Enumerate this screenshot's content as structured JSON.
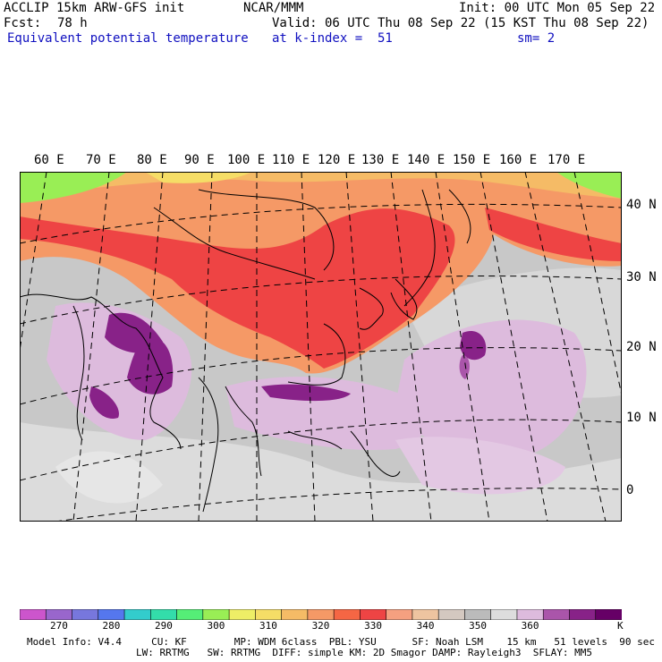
{
  "header": {
    "model": "ACCLIP 15km ARW-GFS init",
    "org": "NCAR/MMM",
    "init": "Init: 00 UTC Mon 05 Sep 22",
    "fcst_label": "Fcst:",
    "fcst_value": "78 h",
    "valid": "Valid: 06 UTC Thu 08 Sep 22 (15 KST Thu 08 Sep 22)",
    "field": "Equivalent potential temperature",
    "level": "at k-index =  51",
    "smooth": "sm= 2"
  },
  "map": {
    "lon_labels": [
      "60 E",
      "70 E",
      "80 E",
      "90 E",
      "100 E",
      "110 E",
      "120 E",
      "130 E",
      "140 E",
      "150 E",
      "160 E",
      "170 E"
    ],
    "lat_labels": [
      "40 N",
      "30 N",
      "20 N",
      "10 N",
      "0"
    ]
  },
  "colorbar": {
    "colors": [
      "#cc55cc",
      "#9966cc",
      "#7777dd",
      "#5577ee",
      "#33cccc",
      "#33ddaa",
      "#55ee77",
      "#99ee55",
      "#eeee66",
      "#f5dd66",
      "#f5bb66",
      "#f59966",
      "#f56644",
      "#ee4444",
      "#f5a080",
      "#eec4a0",
      "#d4c8c0",
      "#bbbbbb",
      "#dddddd",
      "#ddbbdd",
      "#aa55aa",
      "#882288",
      "#660066"
    ],
    "labels": [
      "270",
      "280",
      "290",
      "300",
      "310",
      "320",
      "330",
      "340",
      "350",
      "360"
    ],
    "unit": "K"
  },
  "footer": {
    "line1": "Model Info: V4.4     CU: KF        MP: WDM 6class  PBL: YSU      SF: Noah LSM    15 km   51 levels  90 sec",
    "line2": "LW: RRTMG   SW: RRTMG  DIFF: simple KM: 2D Smagor DAMP: Rayleigh3  SFLAY: MM5"
  }
}
